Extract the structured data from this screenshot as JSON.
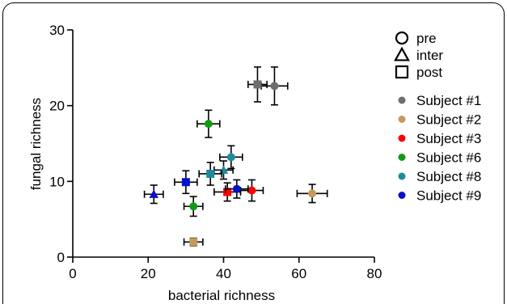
{
  "chart_data": {
    "type": "scatter",
    "xlabel": "bacterial richness",
    "ylabel": "fungal richness",
    "xlim": [
      0,
      80
    ],
    "ylim": [
      0,
      30
    ],
    "x_ticks": [
      0,
      20,
      40,
      60,
      80
    ],
    "y_ticks": [
      0,
      10,
      20,
      30
    ],
    "grid": false,
    "legend_placement": "right",
    "shape_legend": [
      {
        "label": "pre",
        "shape": "circle"
      },
      {
        "label": "inter",
        "shape": "triangle"
      },
      {
        "label": "post",
        "shape": "square"
      }
    ],
    "series": [
      {
        "name": "Subject #1",
        "color": "#6e6e6e",
        "points": [
          {
            "phase": "pre",
            "x": 53.5,
            "y": 22.6,
            "xerr": 3.5,
            "yerr": 2.5
          },
          {
            "phase": "post",
            "x": 49,
            "y": 22.8,
            "xerr": 2.5,
            "yerr": 2.3
          }
        ]
      },
      {
        "name": "Subject #2",
        "color": "#c59a5a",
        "points": [
          {
            "phase": "pre",
            "x": 63.5,
            "y": 8.4,
            "xerr": 4,
            "yerr": 1.2
          },
          {
            "phase": "post",
            "x": 32,
            "y": 2.0,
            "xerr": 2.5,
            "yerr": 0.5
          }
        ]
      },
      {
        "name": "Subject #3",
        "color": "#ff0000",
        "points": [
          {
            "phase": "pre",
            "x": 47.5,
            "y": 8.8,
            "xerr": 3,
            "yerr": 1.4
          },
          {
            "phase": "post",
            "x": 41,
            "y": 8.6,
            "xerr": 3.5,
            "yerr": 1.2
          }
        ]
      },
      {
        "name": "Subject #6",
        "color": "#139a13",
        "points": [
          {
            "phase": "pre",
            "x": 36,
            "y": 17.6,
            "xerr": 3,
            "yerr": 1.8
          },
          {
            "phase": "pre",
            "x": 32,
            "y": 6.7,
            "xerr": 2.5,
            "yerr": 1.3
          }
        ]
      },
      {
        "name": "Subject #8",
        "color": "#1f8a9c",
        "points": [
          {
            "phase": "pre",
            "x": 42,
            "y": 13.2,
            "xerr": 3,
            "yerr": 1.5
          },
          {
            "phase": "inter",
            "x": 40,
            "y": 11.5,
            "xerr": 2.5,
            "yerr": 1.2
          },
          {
            "phase": "post",
            "x": 36.5,
            "y": 11.0,
            "xerr": 3,
            "yerr": 1.5
          }
        ]
      },
      {
        "name": "Subject #9",
        "color": "#0a10c8",
        "points": [
          {
            "phase": "pre",
            "x": 43.5,
            "y": 9.0,
            "xerr": 3,
            "yerr": 1.2
          },
          {
            "phase": "inter",
            "x": 21.5,
            "y": 8.3,
            "xerr": 2.5,
            "yerr": 1.2
          },
          {
            "phase": "post",
            "x": 30,
            "y": 9.9,
            "xerr": 3,
            "yerr": 1.5
          }
        ]
      }
    ]
  }
}
